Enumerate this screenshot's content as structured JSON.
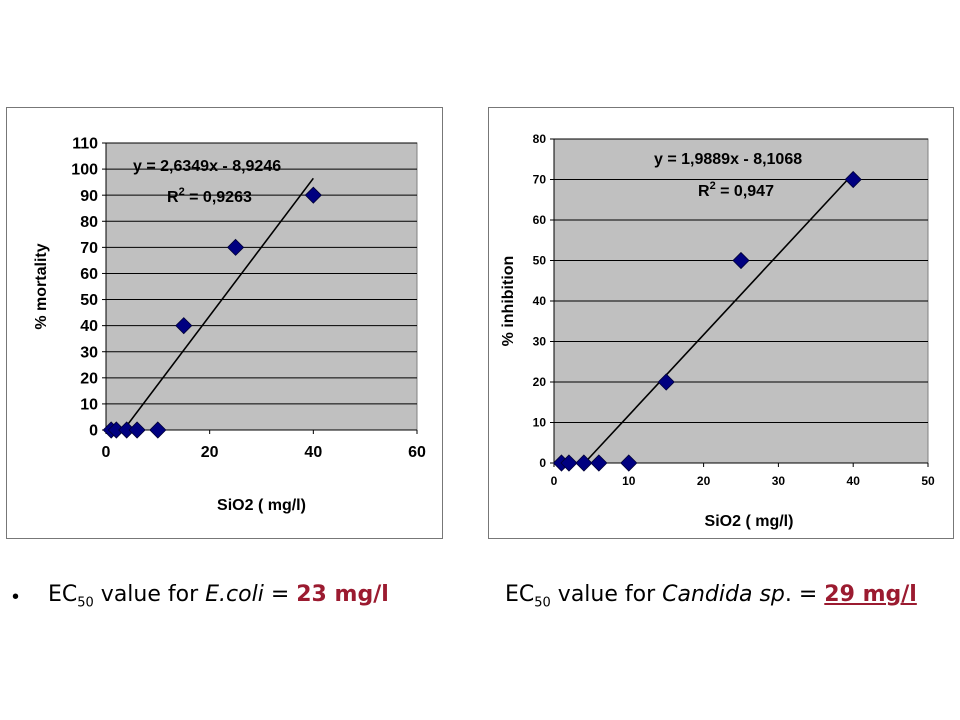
{
  "chart_data": [
    {
      "type": "scatter",
      "title": "",
      "xlabel": "SiO2 ( mg/l)",
      "ylabel": "% mortality",
      "xlim": [
        0,
        60
      ],
      "ylim": [
        0,
        110
      ],
      "xticks": [
        "0",
        "20",
        "40",
        "60"
      ],
      "yticks": [
        "0",
        "10",
        "20",
        "30",
        "40",
        "50",
        "60",
        "70",
        "80",
        "90",
        "100",
        "110"
      ],
      "points": [
        {
          "x": 1,
          "y": 0
        },
        {
          "x": 2,
          "y": 0
        },
        {
          "x": 4,
          "y": 0
        },
        {
          "x": 6,
          "y": 0
        },
        {
          "x": 10,
          "y": 0
        },
        {
          "x": 15,
          "y": 40
        },
        {
          "x": 25,
          "y": 70
        },
        {
          "x": 40,
          "y": 90
        }
      ],
      "trendline": {
        "slope": 2.6349,
        "intercept": -8.9246,
        "x_range": [
          3.387,
          40
        ]
      },
      "equation": "y = 2,6349x - 8,9246",
      "r2_prefix": "R",
      "r2_sup": "2",
      "r2_value": " = 0,9263",
      "grid": "horizontal",
      "marker_color": "#000080",
      "plot_bg": "#c0c0c0"
    },
    {
      "type": "scatter",
      "title": "",
      "xlabel": "SiO2 ( mg/l)",
      "ylabel": "% inhibition",
      "xlim": [
        0,
        50
      ],
      "ylim": [
        0,
        80
      ],
      "xticks": [
        "0",
        "10",
        "20",
        "30",
        "40",
        "50"
      ],
      "yticks": [
        "0",
        "10",
        "20",
        "30",
        "40",
        "50",
        "60",
        "70",
        "80"
      ],
      "points": [
        {
          "x": 1,
          "y": 0
        },
        {
          "x": 2,
          "y": 0
        },
        {
          "x": 4,
          "y": 0
        },
        {
          "x": 6,
          "y": 0
        },
        {
          "x": 10,
          "y": 0
        },
        {
          "x": 15,
          "y": 20
        },
        {
          "x": 25,
          "y": 50
        },
        {
          "x": 40,
          "y": 70
        }
      ],
      "trendline": {
        "slope": 1.9889,
        "intercept": -8.1068,
        "x_range": [
          4.076,
          40
        ]
      },
      "equation": "y = 1,9889x - 8,1068",
      "r2_prefix": "R",
      "r2_sup": "2",
      "r2_value": " = 0,947",
      "grid": "horizontal",
      "marker_color": "#000080",
      "plot_bg": "#c0c0c0"
    }
  ],
  "captions": {
    "bullet": "•",
    "left": {
      "prefix": "EC",
      "sub": "50",
      "middle": " value for ",
      "organism": "E.coli",
      "equals": " = ",
      "value": "23 mg/l"
    },
    "right": {
      "prefix": "EC",
      "sub": "50",
      "middle": " value for ",
      "organism": "Candida sp",
      "after_org": ". = ",
      "value": "29 mg/l"
    }
  },
  "colors": {
    "accent_value": "#9b1b30",
    "marker": "#000080",
    "plot_bg": "#c0c0c0"
  }
}
